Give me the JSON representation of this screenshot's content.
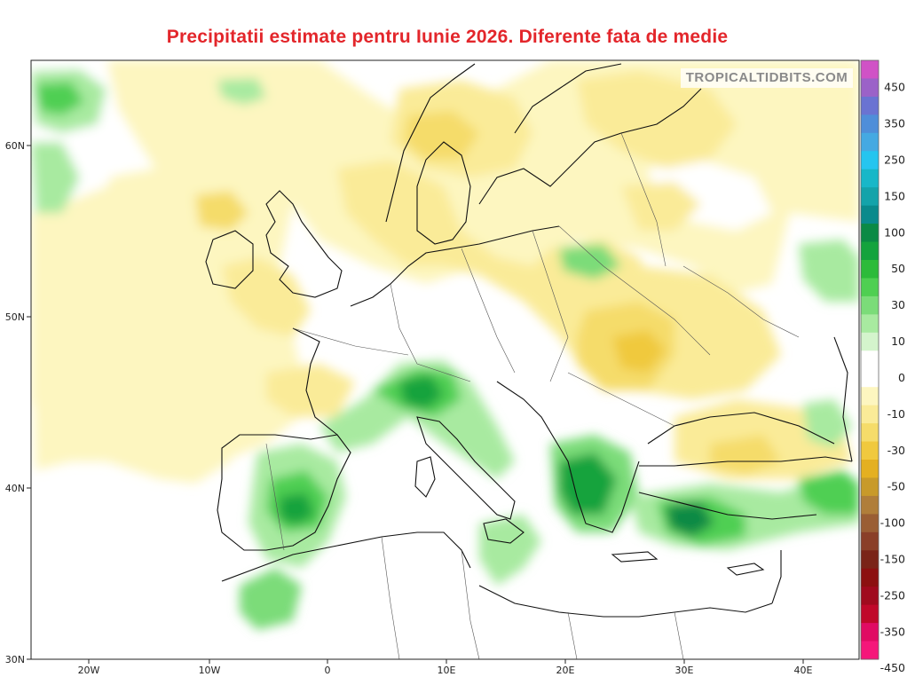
{
  "title": "Precipitatii estimate pentru Iunie 2026. Diferente fata de medie",
  "credit": "TROPICALTIDBITS.COM",
  "map": {
    "lon_ticks": [
      "20W",
      "10W",
      "0",
      "10E",
      "20E",
      "30E",
      "40E"
    ],
    "lat_ticks": [
      "30N",
      "40N",
      "50N",
      "60N"
    ]
  },
  "colorbar": {
    "labels": [
      "450",
      "350",
      "250",
      "150",
      "100",
      "50",
      "30",
      "10",
      "0",
      "-10",
      "-30",
      "-50",
      "-100",
      "-150",
      "-250",
      "-350",
      "-450"
    ],
    "colors": [
      "#d052c6",
      "#9b62c8",
      "#6a73d2",
      "#4f8ed9",
      "#45a9e2",
      "#25c5ef",
      "#18b7c8",
      "#14a3aa",
      "#0a8a8c",
      "#0b8a45",
      "#14a33d",
      "#2dbb3a",
      "#4fcf52",
      "#7bdc79",
      "#a8eaa0",
      "#d4f4cc",
      "#ffffff",
      "#ffffff",
      "#fdf6c0",
      "#faeb98",
      "#f5dc6a",
      "#f0c93e",
      "#e4b021",
      "#c89a2a",
      "#b07e3a",
      "#9a5e34",
      "#8a3f28",
      "#7a2418",
      "#8c1010",
      "#a00a1e",
      "#c0082a",
      "#e00b63",
      "#f5177a"
    ]
  }
}
